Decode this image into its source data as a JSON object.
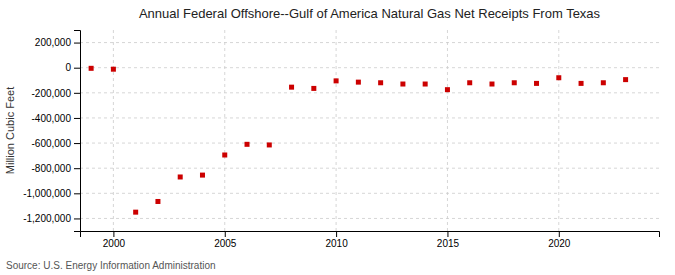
{
  "chart_data": {
    "type": "scatter",
    "title": "Annual Federal Offshore--Gulf of America Natural Gas Net Receipts From Texas",
    "ylabel": "Million Cubic Feet",
    "annotations": [
      "Source: U.S. Energy Information Administration"
    ],
    "x": [
      1999,
      2000,
      2001,
      2002,
      2003,
      2004,
      2005,
      2006,
      2007,
      2008,
      2009,
      2010,
      2011,
      2012,
      2013,
      2014,
      2015,
      2016,
      2017,
      2018,
      2019,
      2020,
      2021,
      2022,
      2023
    ],
    "values": [
      -5000,
      -12000,
      -1150000,
      -1065000,
      -870000,
      -855000,
      -695000,
      -610000,
      -615000,
      -155000,
      -165000,
      -105000,
      -115000,
      -120000,
      -130000,
      -130000,
      -175000,
      -120000,
      -130000,
      -120000,
      -125000,
      -80000,
      -125000,
      -120000,
      -95000
    ],
    "color": "#cc0000",
    "marker": "square",
    "grid": true,
    "xlim": [
      1998.5,
      2024.5
    ],
    "xticks": [
      2000,
      2005,
      2010,
      2015,
      2020
    ],
    "ylim": [
      -1300000,
      300000
    ],
    "yticks": [
      {
        "value": -1200000,
        "label": "-1,200,000"
      },
      {
        "value": -1000000,
        "label": "-1,000,000"
      },
      {
        "value": -800000,
        "label": "-800,000"
      },
      {
        "value": -600000,
        "label": "-600,000"
      },
      {
        "value": -400000,
        "label": "-400,000"
      },
      {
        "value": -200000,
        "label": "-200,000"
      },
      0,
      {
        "value": 200000,
        "label": "200,000"
      }
    ]
  }
}
